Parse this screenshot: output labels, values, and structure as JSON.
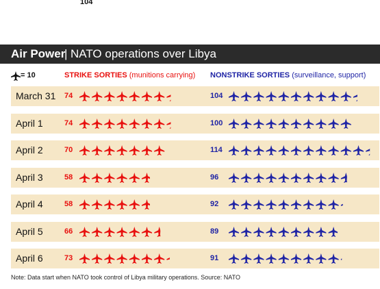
{
  "stray_number": "104",
  "title": {
    "bold": "Air Power",
    "separator": "|",
    "rest": "NATO operations over Libya"
  },
  "legend": {
    "key_label": "= 10"
  },
  "headers": {
    "strike_bold": "STRIKE SORTIES",
    "strike_detail": "(munitions carrying)",
    "nonstrike_bold": "NONSTRIKE SORTIES",
    "nonstrike_detail": "(surveillance, support)"
  },
  "note": "Note: Data start when NATO took control of Libya military operations. Source: NATO",
  "colors": {
    "strike": "#e8100e",
    "nonstrike": "#1f24a5",
    "row_bg": "#f6e7c7",
    "title_bg": "#2b2b2b"
  },
  "chart_data": {
    "type": "table",
    "title": "Air Power | NATO operations over Libya",
    "unit_per_icon": 10,
    "categories": [
      "March 31",
      "April 1",
      "April 2",
      "April 3",
      "April 4",
      "April 5",
      "April 6"
    ],
    "series": [
      {
        "name": "STRIKE SORTIES (munitions carrying)",
        "values": [
          74,
          74,
          70,
          58,
          58,
          66,
          73
        ]
      },
      {
        "name": "NONSTRIKE SORTIES (surveillance, support)",
        "values": [
          104,
          100,
          114,
          96,
          92,
          89,
          91
        ]
      }
    ]
  }
}
